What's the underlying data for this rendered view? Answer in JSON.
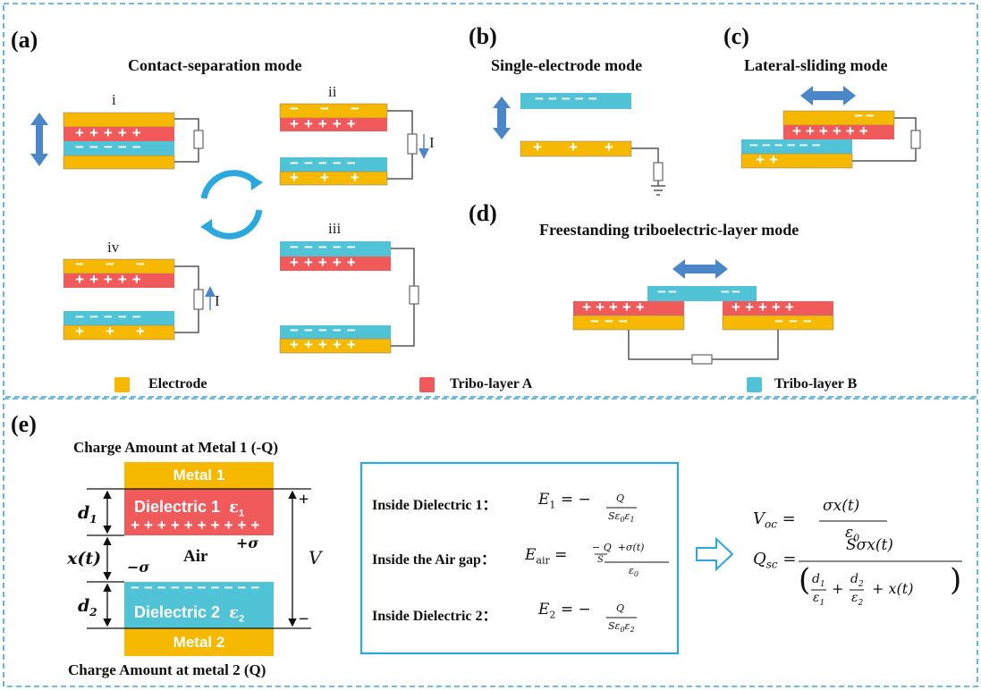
{
  "colors": {
    "electrode": "#F6B800",
    "tribo_a": "#F05A5B",
    "tribo_b": "#50C3D6",
    "arrow": "#4A86C8",
    "dashed_border": "#3AA7E0",
    "wire": "#555555"
  },
  "panel_a": {
    "label": "(a)",
    "title": "Contact-separation mode",
    "states": [
      "i",
      "ii",
      "iii",
      "iv"
    ],
    "current_label": "I"
  },
  "panel_b": {
    "label": "(b)",
    "title": "Single-electrode mode"
  },
  "panel_c": {
    "label": "(c)",
    "title": "Lateral-sliding mode"
  },
  "panel_d": {
    "label": "(d)",
    "title": "Freestanding triboelectric-layer mode"
  },
  "legend": {
    "electrode": "Electrode",
    "tribo_a": "Tribo-layer A",
    "tribo_b": "Tribo-layer B"
  },
  "panel_e": {
    "label": "(e)",
    "top_caption": "Charge Amount at Metal 1 (-Q)",
    "bottom_caption": "Charge Amount at metal 2 (Q)",
    "metal1": "Metal 1",
    "metal2": "Metal 2",
    "dielectric1": "Dielectric 1",
    "dielectric2": "Dielectric 2",
    "air": "Air",
    "d1": "d",
    "d1_sub": "1",
    "d2": "d",
    "d2_sub": "2",
    "xt": "x(t)",
    "v": "V",
    "plus_sigma": "+σ",
    "minus_sigma": "−σ",
    "eps1": "ε",
    "eps1_sub": "1",
    "eps2": "ε",
    "eps2_sub": "2",
    "plus": "+",
    "minus": "−",
    "eq1_label": "Inside Dielectric 1：",
    "eq2_label": "Inside the Air gap：",
    "eq3_label": "Inside Dielectric 2："
  }
}
